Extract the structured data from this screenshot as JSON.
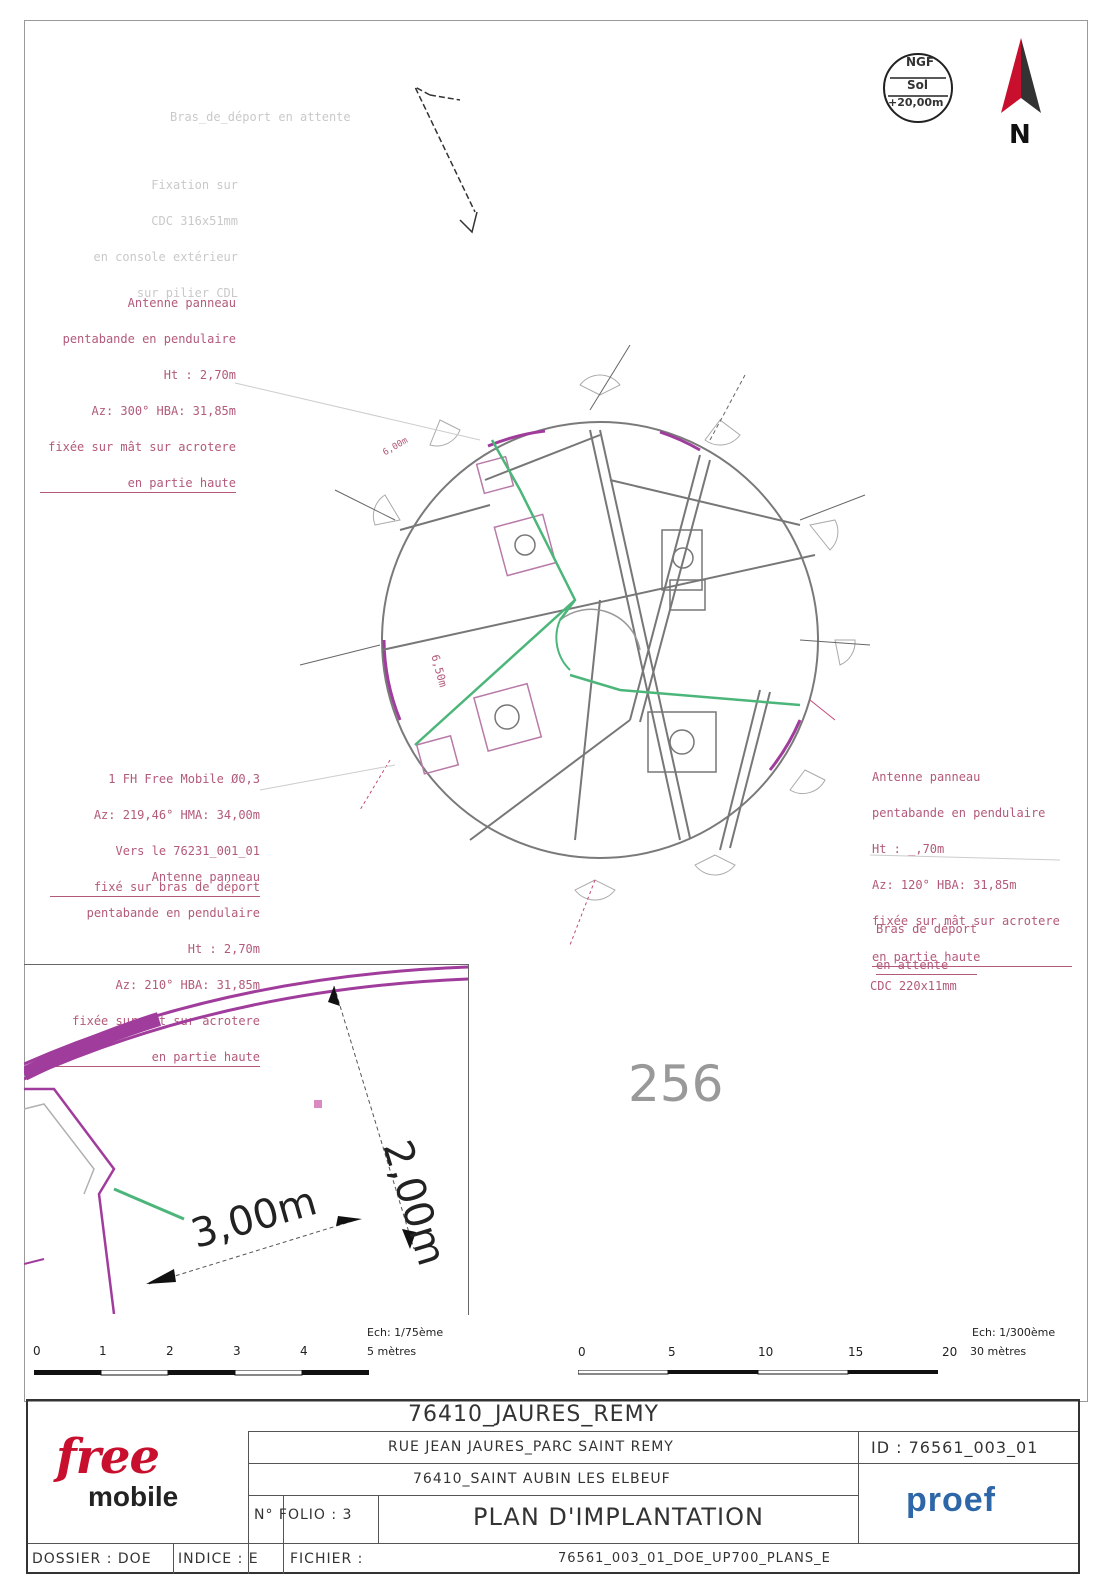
{
  "header": {
    "ngf_label": "NGF",
    "sol_label": "Sol",
    "height_label": "+20,00m",
    "north_label": "N"
  },
  "annotations": {
    "bras_top": "Bras_de_déport en attente",
    "fixing_lines": [
      "Fixation sur",
      "CDC 316x51mm",
      "en console extérieur",
      "sur pilier CDL"
    ],
    "antenna_top_left": [
      "Antenne panneau",
      "pentabande en pendulaire",
      "Ht : 2,70m",
      "Az: 300° HBA: 31,85m",
      "fixée sur mât sur acrotere",
      "en partie haute"
    ],
    "fh_left": [
      "1 FH Free Mobile Ø0,3",
      "Az: 219,46° HMA: 34,00m",
      "Vers le 76231_001_01",
      "fixé sur bras de déport"
    ],
    "antenna_bottom_left": [
      "Antenne panneau",
      "pentabande en pendulaire",
      "Ht : 2,70m",
      "Az: 210° HBA: 31,85m",
      "fixée sur mât sur acrotere",
      "en partie haute"
    ],
    "antenna_right": [
      "Antenne panneau",
      "pentabande en pendulaire",
      "Ht : _,70m",
      "Az: 120° HBA: 31,85m",
      "fixée sur mât sur acrotere",
      "en partie haute"
    ],
    "bras_right": [
      "Bras de déport",
      "en attente"
    ],
    "cdc_right": "CDC 220x11mm",
    "dim_650": "6,50m",
    "dim_600": "6,00m",
    "number_256": "256"
  },
  "detail": {
    "dim_h": "3,00m",
    "dim_v": "2,00m"
  },
  "scales": {
    "left_ticks": [
      "0",
      "1",
      "2",
      "3",
      "4"
    ],
    "left_unit": "5 mètres",
    "left_ech": "Ech: 1/75ème",
    "right_ticks": [
      "0",
      "5",
      "10",
      "15",
      "20"
    ],
    "right_unit": "30 mètres",
    "right_ech": "Ech: 1/300ème"
  },
  "title_block": {
    "site_name": "76410_JAURES_REMY",
    "address": "RUE JEAN JAURES_PARC SAINT REMY",
    "city": "76410_SAINT AUBIN LES ELBEUF",
    "id": "ID : 76561_003_01",
    "folio": "N° FOLIO : 3",
    "plan_title": "PLAN D'IMPLANTATION",
    "dossier": "DOSSIER : DOE",
    "indice": "INDICE : E",
    "fichier_label": "FICHIER :",
    "fichier": "76561_003_01_DOE_UP700_PLANS_E",
    "logo_free": "free",
    "logo_mobile": "mobile",
    "logo_proef": "proef"
  },
  "colors": {
    "annotation": "#b35a7a",
    "cable_green": "#4cb67a",
    "roof_edge": "#a03c9c",
    "logo_red": "#c8102e",
    "logo_blue": "#2d67a8"
  }
}
